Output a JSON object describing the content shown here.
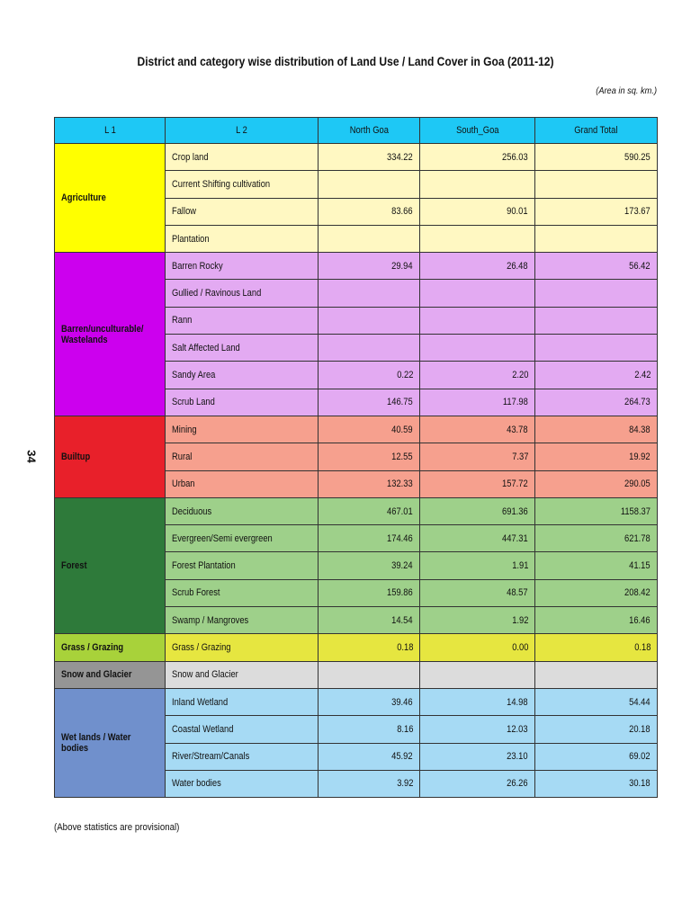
{
  "title": "District and category wise distribution of Land Use / Land Cover in Goa (2011-12)",
  "unit_note": "(Area in sq. km.)",
  "page_number": "34",
  "footer_note": "(Above statistics are provisional)",
  "columns": [
    "L 1",
    "L 2",
    "North Goa",
    "South_Goa",
    "Grand Total"
  ],
  "groups": [
    {
      "l1": "Agriculture",
      "l1_color": "#ffff00",
      "row_color": "#fff8c2",
      "rows": [
        {
          "l2": "Crop land",
          "north": "334.22",
          "south": "256.03",
          "total": "590.25"
        },
        {
          "l2": "Current Shifting cultivation",
          "north": "",
          "south": "",
          "total": ""
        },
        {
          "l2": "Fallow",
          "north": "83.66",
          "south": "90.01",
          "total": "173.67"
        },
        {
          "l2": "Plantation",
          "north": "",
          "south": "",
          "total": ""
        }
      ]
    },
    {
      "l1": "Barren/unculturable/ Wastelands",
      "l1_color": "#cc00ee",
      "row_color": "#e3aaf2",
      "rows": [
        {
          "l2": "Barren Rocky",
          "north": "29.94",
          "south": "26.48",
          "total": "56.42"
        },
        {
          "l2": "Gullied / Ravinous Land",
          "north": "",
          "south": "",
          "total": ""
        },
        {
          "l2": "Rann",
          "north": "",
          "south": "",
          "total": ""
        },
        {
          "l2": "Salt Affected Land",
          "north": "",
          "south": "",
          "total": ""
        },
        {
          "l2": "Sandy Area",
          "north": "0.22",
          "south": "2.20",
          "total": "2.42"
        },
        {
          "l2": "Scrub Land",
          "north": "146.75",
          "south": "117.98",
          "total": "264.73"
        }
      ]
    },
    {
      "l1": "Builtup",
      "l1_color": "#e8202a",
      "row_color": "#f6a08e",
      "rows": [
        {
          "l2": "Mining",
          "north": "40.59",
          "south": "43.78",
          "total": "84.38"
        },
        {
          "l2": "Rural",
          "north": "12.55",
          "south": "7.37",
          "total": "19.92"
        },
        {
          "l2": "Urban",
          "north": "132.33",
          "south": "157.72",
          "total": "290.05"
        }
      ]
    },
    {
      "l1": "Forest",
      "l1_color": "#2e7a3a",
      "row_color": "#9ed08a",
      "rows": [
        {
          "l2": "Deciduous",
          "north": "467.01",
          "south": "691.36",
          "total": "1158.37"
        },
        {
          "l2": "Evergreen/Semi evergreen",
          "north": "174.46",
          "south": "447.31",
          "total": "621.78"
        },
        {
          "l2": "Forest Plantation",
          "north": "39.24",
          "south": "1.91",
          "total": "41.15"
        },
        {
          "l2": "Scrub Forest",
          "north": "159.86",
          "south": "48.57",
          "total": "208.42"
        },
        {
          "l2": "Swamp / Mangroves",
          "north": "14.54",
          "south": "1.92",
          "total": "16.46"
        }
      ]
    },
    {
      "l1": "Grass / Grazing",
      "l1_color": "#a8d23a",
      "row_color": "#e6e640",
      "rows": [
        {
          "l2": "Grass / Grazing",
          "north": "0.18",
          "south": "0.00",
          "total": "0.18"
        }
      ]
    },
    {
      "l1": "Snow and Glacier",
      "l1_color": "#959595",
      "row_color": "#dcdcdc",
      "rows": [
        {
          "l2": "Snow and Glacier",
          "north": "",
          "south": "",
          "total": ""
        }
      ]
    },
    {
      "l1": "Wet lands / Water bodies",
      "l1_color": "#7090cc",
      "row_color": "#a6daf4",
      "rows": [
        {
          "l2": "Inland Wetland",
          "north": "39.46",
          "south": "14.98",
          "total": "54.44"
        },
        {
          "l2": "Coastal Wetland",
          "north": "8.16",
          "south": "12.03",
          "total": "20.18"
        },
        {
          "l2": "River/Stream/Canals",
          "north": "45.92",
          "south": "23.10",
          "total": "69.02"
        },
        {
          "l2": "Water bodies",
          "north": "3.92",
          "south": "26.26",
          "total": "30.18"
        }
      ]
    }
  ]
}
